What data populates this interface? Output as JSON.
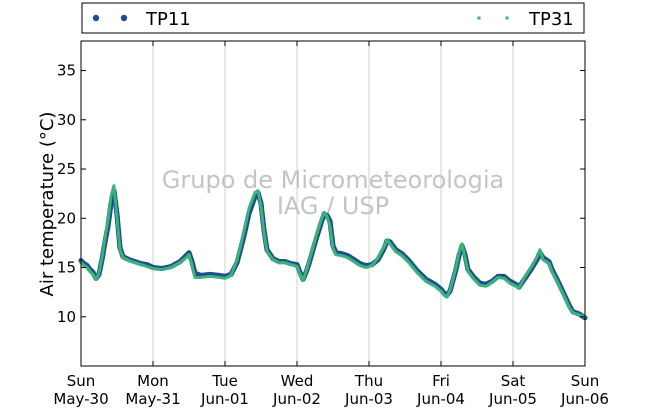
{
  "chart_data": {
    "type": "scatter",
    "ylabel": "Air temperature (°C)",
    "ylim": [
      5,
      38
    ],
    "yticks": [
      10,
      15,
      20,
      25,
      30,
      35
    ],
    "xlim_days": [
      "2012-05-30",
      "2012-06-06"
    ],
    "xtick_labels": [
      [
        "Sun",
        "May-30"
      ],
      [
        "Mon",
        "May-31"
      ],
      [
        "Tue",
        "Jun-01"
      ],
      [
        "Wed",
        "Jun-02"
      ],
      [
        "Thu",
        "Jun-03"
      ],
      [
        "Fri",
        "Jun-04"
      ],
      [
        "Sat",
        "Jun-05"
      ],
      [
        "Sun",
        "Jun-06"
      ]
    ],
    "grid": "vertical",
    "legend": "top",
    "watermark": [
      "Grupo de Micrometeorologia",
      "IAG / USP"
    ],
    "series": [
      {
        "name": "TP11",
        "color": "#1f4e8c",
        "marker": "circle",
        "points": [
          [
            "2012-05-30 00:00",
            15.7
          ],
          [
            "2012-05-30 01:00",
            15.4
          ],
          [
            "2012-05-30 02:00",
            15.2
          ],
          [
            "2012-05-30 03:00",
            14.8
          ],
          [
            "2012-05-30 04:00",
            14.5
          ],
          [
            "2012-05-30 05:00",
            13.9
          ],
          [
            "2012-05-30 06:00",
            14.3
          ],
          [
            "2012-05-30 07:00",
            15.8
          ],
          [
            "2012-05-30 08:00",
            17.6
          ],
          [
            "2012-05-30 09:00",
            19.2
          ],
          [
            "2012-05-30 10:00",
            21.5
          ],
          [
            "2012-05-30 11:00",
            22.8
          ],
          [
            "2012-05-30 12:00",
            20.4
          ],
          [
            "2012-05-30 13:00",
            17.0
          ],
          [
            "2012-05-30 14:00",
            16.1
          ],
          [
            "2012-05-30 16:00",
            15.8
          ],
          [
            "2012-05-30 18:00",
            15.6
          ],
          [
            "2012-05-30 20:00",
            15.4
          ],
          [
            "2012-05-30 22:00",
            15.3
          ],
          [
            "2012-05-31 00:00",
            15.0
          ],
          [
            "2012-05-31 03:00",
            14.9
          ],
          [
            "2012-05-31 06:00",
            15.1
          ],
          [
            "2012-05-31 09:00",
            15.6
          ],
          [
            "2012-05-31 11:00",
            16.2
          ],
          [
            "2012-05-31 12:00",
            16.5
          ],
          [
            "2012-05-31 13:00",
            15.6
          ],
          [
            "2012-05-31 14:00",
            14.4
          ],
          [
            "2012-05-31 16:00",
            14.2
          ],
          [
            "2012-05-31 19:00",
            14.3
          ],
          [
            "2012-05-31 22:00",
            14.2
          ],
          [
            "2012-06-01 00:00",
            14.1
          ],
          [
            "2012-06-01 02:00",
            14.3
          ],
          [
            "2012-06-01 04:00",
            15.5
          ],
          [
            "2012-06-01 06:00",
            17.8
          ],
          [
            "2012-06-01 08:00",
            20.5
          ],
          [
            "2012-06-01 10:00",
            22.2
          ],
          [
            "2012-06-01 11:00",
            22.6
          ],
          [
            "2012-06-01 12:00",
            21.5
          ],
          [
            "2012-06-01 13:00",
            18.8
          ],
          [
            "2012-06-01 14:00",
            16.8
          ],
          [
            "2012-06-01 16:00",
            15.9
          ],
          [
            "2012-06-01 18:00",
            15.6
          ],
          [
            "2012-06-01 20:00",
            15.6
          ],
          [
            "2012-06-01 22:00",
            15.4
          ],
          [
            "2012-06-02 00:00",
            15.3
          ],
          [
            "2012-06-02 01:00",
            14.5
          ],
          [
            "2012-06-02 02:00",
            13.8
          ],
          [
            "2012-06-02 03:00",
            14.5
          ],
          [
            "2012-06-02 04:00",
            15.4
          ],
          [
            "2012-06-02 06:00",
            17.5
          ],
          [
            "2012-06-02 08:00",
            19.5
          ],
          [
            "2012-06-02 09:00",
            20.4
          ],
          [
            "2012-06-02 10:00",
            20.3
          ],
          [
            "2012-06-02 11:00",
            19.7
          ],
          [
            "2012-06-02 12:00",
            17.2
          ],
          [
            "2012-06-02 13:00",
            16.5
          ],
          [
            "2012-06-02 15:00",
            16.4
          ],
          [
            "2012-06-02 17:00",
            16.2
          ],
          [
            "2012-06-02 19:00",
            15.8
          ],
          [
            "2012-06-02 21:00",
            15.4
          ],
          [
            "2012-06-02 23:00",
            15.2
          ],
          [
            "2012-06-03 01:00",
            15.3
          ],
          [
            "2012-06-03 03:00",
            15.8
          ],
          [
            "2012-06-03 05:00",
            16.9
          ],
          [
            "2012-06-03 06:00",
            17.7
          ],
          [
            "2012-06-03 07:00",
            17.6
          ],
          [
            "2012-06-03 09:00",
            16.8
          ],
          [
            "2012-06-03 11:00",
            16.4
          ],
          [
            "2012-06-03 13:00",
            15.8
          ],
          [
            "2012-06-03 16:00",
            14.7
          ],
          [
            "2012-06-03 19:00",
            13.8
          ],
          [
            "2012-06-03 22:00",
            13.3
          ],
          [
            "2012-06-04 00:00",
            12.8
          ],
          [
            "2012-06-04 01:00",
            12.4
          ],
          [
            "2012-06-04 02:00",
            12.2
          ],
          [
            "2012-06-04 03:00",
            12.6
          ],
          [
            "2012-06-04 05:00",
            14.8
          ],
          [
            "2012-06-04 06:00",
            16.2
          ],
          [
            "2012-06-04 07:00",
            17.2
          ],
          [
            "2012-06-04 08:00",
            16.3
          ],
          [
            "2012-06-04 09:00",
            14.8
          ],
          [
            "2012-06-04 11:00",
            14.0
          ],
          [
            "2012-06-04 13:00",
            13.4
          ],
          [
            "2012-06-04 15:00",
            13.3
          ],
          [
            "2012-06-04 17:00",
            13.6
          ],
          [
            "2012-06-04 19:00",
            14.1
          ],
          [
            "2012-06-04 21:00",
            14.1
          ],
          [
            "2012-06-04 23:00",
            13.6
          ],
          [
            "2012-06-05 01:00",
            13.3
          ],
          [
            "2012-06-05 02:00",
            13.0
          ],
          [
            "2012-06-05 04:00",
            13.9
          ],
          [
            "2012-06-05 06:00",
            14.8
          ],
          [
            "2012-06-05 08:00",
            15.8
          ],
          [
            "2012-06-05 09:00",
            16.5
          ],
          [
            "2012-06-05 10:00",
            16.0
          ],
          [
            "2012-06-05 12:00",
            15.6
          ],
          [
            "2012-06-05 13:00",
            14.8
          ],
          [
            "2012-06-05 15:00",
            13.6
          ],
          [
            "2012-06-05 17:00",
            12.3
          ],
          [
            "2012-06-05 19:00",
            11.0
          ],
          [
            "2012-06-05 20:00",
            10.5
          ],
          [
            "2012-06-05 22:00",
            10.3
          ],
          [
            "2012-06-06 00:00",
            9.9
          ]
        ]
      },
      {
        "name": "TP31",
        "color": "#3bb27e",
        "marker": "square",
        "points": [
          [
            "2012-05-30 00:00",
            15.5
          ],
          [
            "2012-05-30 01:00",
            15.2
          ],
          [
            "2012-05-30 02:00",
            15.0
          ],
          [
            "2012-05-30 03:00",
            14.6
          ],
          [
            "2012-05-30 04:00",
            14.3
          ],
          [
            "2012-05-30 05:00",
            13.8
          ],
          [
            "2012-05-30 06:00",
            14.4
          ],
          [
            "2012-05-30 07:00",
            16.0
          ],
          [
            "2012-05-30 08:00",
            18.0
          ],
          [
            "2012-05-30 09:00",
            19.8
          ],
          [
            "2012-05-30 10:00",
            22.2
          ],
          [
            "2012-05-30 11:00",
            23.3
          ],
          [
            "2012-05-30 12:00",
            20.0
          ],
          [
            "2012-05-30 13:00",
            16.8
          ],
          [
            "2012-05-30 14:00",
            16.0
          ],
          [
            "2012-05-30 16:00",
            15.7
          ],
          [
            "2012-05-30 18:00",
            15.5
          ],
          [
            "2012-05-30 20:00",
            15.3
          ],
          [
            "2012-05-30 22:00",
            15.1
          ],
          [
            "2012-05-31 00:00",
            14.9
          ],
          [
            "2012-05-31 03:00",
            14.8
          ],
          [
            "2012-05-31 06:00",
            15.0
          ],
          [
            "2012-05-31 09:00",
            15.5
          ],
          [
            "2012-05-31 11:00",
            16.0
          ],
          [
            "2012-05-31 12:00",
            16.3
          ],
          [
            "2012-05-31 13:00",
            15.2
          ],
          [
            "2012-05-31 14:00",
            14.0
          ],
          [
            "2012-05-31 16:00",
            14.0
          ],
          [
            "2012-05-31 19:00",
            14.1
          ],
          [
            "2012-05-31 22:00",
            14.0
          ],
          [
            "2012-06-01 00:00",
            13.9
          ],
          [
            "2012-06-01 02:00",
            14.2
          ],
          [
            "2012-06-01 04:00",
            15.8
          ],
          [
            "2012-06-01 06:00",
            18.2
          ],
          [
            "2012-06-01 08:00",
            21.0
          ],
          [
            "2012-06-01 10:00",
            22.6
          ],
          [
            "2012-06-01 11:00",
            22.8
          ],
          [
            "2012-06-01 12:00",
            21.2
          ],
          [
            "2012-06-01 13:00",
            18.5
          ],
          [
            "2012-06-01 14:00",
            16.6
          ],
          [
            "2012-06-01 16:00",
            15.8
          ],
          [
            "2012-06-01 18:00",
            15.5
          ],
          [
            "2012-06-01 20:00",
            15.5
          ],
          [
            "2012-06-01 22:00",
            15.3
          ],
          [
            "2012-06-02 00:00",
            15.1
          ],
          [
            "2012-06-02 01:00",
            14.3
          ],
          [
            "2012-06-02 02:00",
            13.7
          ],
          [
            "2012-06-02 03:00",
            14.6
          ],
          [
            "2012-06-02 04:00",
            15.6
          ],
          [
            "2012-06-02 06:00",
            17.8
          ],
          [
            "2012-06-02 08:00",
            19.8
          ],
          [
            "2012-06-02 09:00",
            20.6
          ],
          [
            "2012-06-02 10:00",
            20.2
          ],
          [
            "2012-06-02 11:00",
            19.2
          ],
          [
            "2012-06-02 12:00",
            16.9
          ],
          [
            "2012-06-02 13:00",
            16.3
          ],
          [
            "2012-06-02 15:00",
            16.2
          ],
          [
            "2012-06-02 17:00",
            16.0
          ],
          [
            "2012-06-02 19:00",
            15.6
          ],
          [
            "2012-06-02 21:00",
            15.2
          ],
          [
            "2012-06-02 23:00",
            15.0
          ],
          [
            "2012-06-03 01:00",
            15.2
          ],
          [
            "2012-06-03 03:00",
            16.0
          ],
          [
            "2012-06-03 05:00",
            17.1
          ],
          [
            "2012-06-03 06:00",
            17.8
          ],
          [
            "2012-06-03 07:00",
            17.4
          ],
          [
            "2012-06-03 09:00",
            16.6
          ],
          [
            "2012-06-03 11:00",
            16.2
          ],
          [
            "2012-06-03 13:00",
            15.6
          ],
          [
            "2012-06-03 16:00",
            14.5
          ],
          [
            "2012-06-03 19:00",
            13.6
          ],
          [
            "2012-06-03 22:00",
            13.1
          ],
          [
            "2012-06-04 00:00",
            12.6
          ],
          [
            "2012-06-04 01:00",
            12.2
          ],
          [
            "2012-06-04 02:00",
            12.0
          ],
          [
            "2012-06-04 03:00",
            12.7
          ],
          [
            "2012-06-04 05:00",
            15.0
          ],
          [
            "2012-06-04 06:00",
            16.5
          ],
          [
            "2012-06-04 07:00",
            17.4
          ],
          [
            "2012-06-04 08:00",
            16.0
          ],
          [
            "2012-06-04 09:00",
            14.6
          ],
          [
            "2012-06-04 11:00",
            13.8
          ],
          [
            "2012-06-04 13:00",
            13.2
          ],
          [
            "2012-06-04 15:00",
            13.1
          ],
          [
            "2012-06-04 17:00",
            13.5
          ],
          [
            "2012-06-04 19:00",
            14.0
          ],
          [
            "2012-06-04 21:00",
            13.9
          ],
          [
            "2012-06-04 23:00",
            13.4
          ],
          [
            "2012-06-05 01:00",
            13.1
          ],
          [
            "2012-06-05 02:00",
            12.9
          ],
          [
            "2012-06-05 04:00",
            14.1
          ],
          [
            "2012-06-05 06:00",
            15.0
          ],
          [
            "2012-06-05 08:00",
            16.1
          ],
          [
            "2012-06-05 09:00",
            16.8
          ],
          [
            "2012-06-05 10:00",
            15.8
          ],
          [
            "2012-06-05 12:00",
            15.4
          ],
          [
            "2012-06-05 13:00",
            14.6
          ],
          [
            "2012-06-05 15:00",
            13.4
          ],
          [
            "2012-06-05 17:00",
            12.1
          ],
          [
            "2012-06-05 19:00",
            10.8
          ],
          [
            "2012-06-05 20:00",
            10.4
          ],
          [
            "2012-06-05 22:00",
            10.2
          ],
          [
            "2012-06-06 00:00",
            10.0
          ]
        ]
      }
    ]
  }
}
